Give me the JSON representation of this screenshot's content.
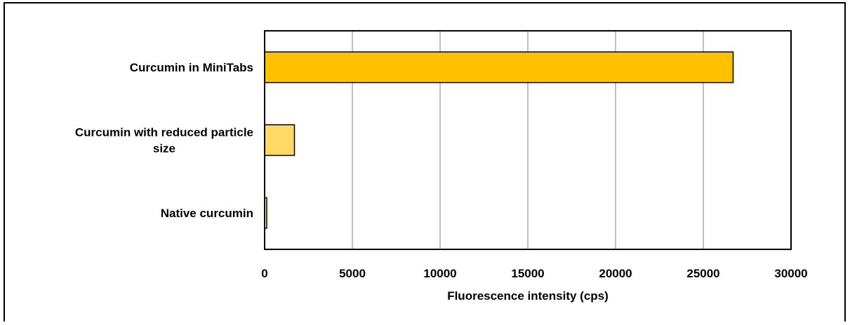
{
  "chart_data": {
    "type": "bar",
    "orientation": "horizontal",
    "categories": [
      "Curcumin in MiniTabs",
      "Curcumin with reduced particle size",
      "Native curcumin"
    ],
    "category_lines": [
      [
        "Curcumin in MiniTabs"
      ],
      [
        "Curcumin with reduced particle",
        "size"
      ],
      [
        "Native curcumin"
      ]
    ],
    "values": [
      26700,
      1700,
      120
    ],
    "bar_colors": [
      "#FFC000",
      "#FFD966",
      "#FFF2CC"
    ],
    "xlabel": "Fluorescence intensity (cps)",
    "ylabel": "",
    "title": "",
    "xlim": [
      0,
      30000
    ],
    "xticks": [
      "0",
      "5000",
      "10000",
      "15000",
      "20000",
      "25000",
      "30000"
    ],
    "grid": true,
    "legend": "none"
  }
}
